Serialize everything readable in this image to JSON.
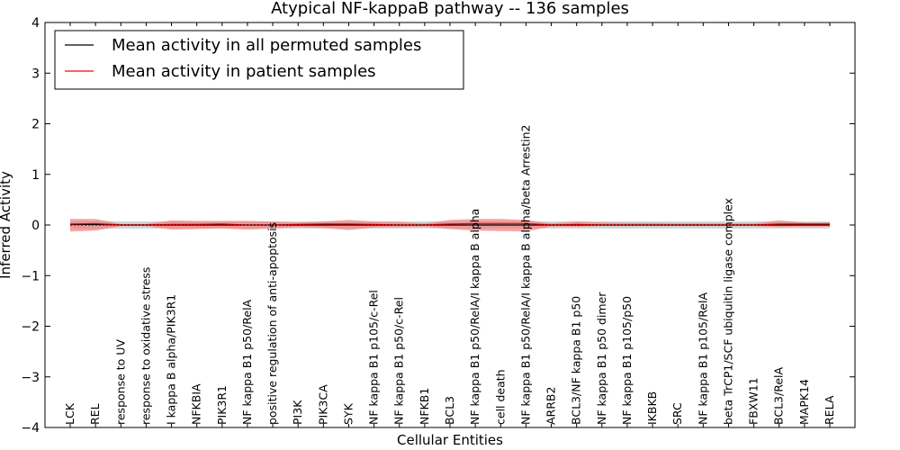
{
  "chart_data": {
    "type": "line",
    "title": "Atypical NF-kappaB pathway -- 136 samples",
    "xlabel": "Cellular Entities",
    "ylabel": "Inferred Activity",
    "ylim": [
      -4,
      4
    ],
    "yticks": [
      -4,
      -3,
      -2,
      -1,
      0,
      1,
      2,
      3,
      4
    ],
    "ytick_labels": [
      "−4",
      "−3",
      "−2",
      "−1",
      "0",
      "1",
      "2",
      "3",
      "4"
    ],
    "grid": false,
    "legend_position": "top-left",
    "categories": [
      "LCK",
      "REL",
      "response to UV",
      "response to oxidative stress",
      "I kappa B alpha/PIK3R1",
      "NFKBIA",
      "PIK3R1",
      "NF kappa B1 p50/RelA",
      "positive regulation of anti-apoptosis",
      "PI3K",
      "PIK3CA",
      "SYK",
      "NF kappa B1 p105/c-Rel",
      "NF kappa B1 p50/c-Rel",
      "NFKB1",
      "BCL3",
      "NF kappa B1 p50/RelA/I kappa B alpha",
      "cell death",
      "NF kappa B1 p50/RelA/I kappa B alpha/beta Arrestin2",
      "ARRB2",
      "BCL3/NF kappa B1 p50",
      "NF kappa B1 p50 dimer",
      "NF kappa B1 p105/p50",
      "IKBKB",
      "SRC",
      "NF kappa B1 p105/RelA",
      "beta TrCP1/SCF ubiquitin ligase complex",
      "FBXW11",
      "BCL3/RelA",
      "MAPK14",
      "RELA"
    ],
    "series": [
      {
        "name": "Mean activity in all permuted samples",
        "color": "#000000",
        "values": [
          0.01,
          0.01,
          0.0,
          0.0,
          0.0,
          0.0,
          0.0,
          0.0,
          0.0,
          0.0,
          0.0,
          0.0,
          0.0,
          0.0,
          0.0,
          0.0,
          0.0,
          0.0,
          0.0,
          0.0,
          0.0,
          0.0,
          0.0,
          0.0,
          0.0,
          0.0,
          0.0,
          0.0,
          0.0,
          0.0,
          0.0
        ],
        "band_lower": [
          -0.08,
          -0.08,
          -0.07,
          -0.07,
          -0.07,
          -0.07,
          -0.07,
          -0.07,
          -0.07,
          -0.07,
          -0.07,
          -0.07,
          -0.07,
          -0.07,
          -0.07,
          -0.07,
          -0.07,
          -0.07,
          -0.07,
          -0.07,
          -0.07,
          -0.07,
          -0.07,
          -0.07,
          -0.07,
          -0.07,
          -0.07,
          -0.07,
          -0.07,
          -0.07,
          -0.07
        ],
        "band_upper": [
          0.08,
          0.08,
          0.07,
          0.07,
          0.07,
          0.07,
          0.07,
          0.07,
          0.07,
          0.07,
          0.07,
          0.07,
          0.07,
          0.07,
          0.07,
          0.07,
          0.07,
          0.07,
          0.07,
          0.07,
          0.07,
          0.07,
          0.07,
          0.07,
          0.07,
          0.07,
          0.07,
          0.07,
          0.07,
          0.07,
          0.07
        ],
        "band_color": "#c8c8c8"
      },
      {
        "name": "Mean activity in patient samples",
        "color": "#ff0000",
        "values": [
          0.02,
          0.03,
          0.0,
          0.0,
          0.01,
          0.01,
          0.02,
          0.0,
          0.0,
          0.01,
          0.02,
          0.02,
          0.01,
          0.0,
          0.0,
          0.02,
          0.03,
          0.03,
          0.03,
          0.0,
          0.01,
          0.0,
          0.0,
          0.0,
          0.0,
          0.0,
          0.0,
          0.0,
          0.02,
          0.02,
          0.02
        ],
        "band_lower": [
          -0.13,
          -0.11,
          -0.02,
          -0.02,
          -0.09,
          -0.08,
          -0.07,
          -0.09,
          -0.07,
          -0.04,
          -0.06,
          -0.1,
          -0.05,
          -0.04,
          -0.03,
          -0.08,
          -0.11,
          -0.12,
          -0.13,
          -0.03,
          -0.03,
          -0.02,
          -0.02,
          -0.02,
          -0.02,
          -0.02,
          -0.02,
          -0.02,
          -0.04,
          -0.03,
          -0.03
        ],
        "band_upper": [
          0.12,
          0.12,
          0.02,
          0.02,
          0.09,
          0.08,
          0.08,
          0.08,
          0.07,
          0.05,
          0.07,
          0.1,
          0.07,
          0.06,
          0.03,
          0.1,
          0.12,
          0.12,
          0.1,
          0.03,
          0.07,
          0.05,
          0.04,
          0.04,
          0.03,
          0.03,
          0.03,
          0.03,
          0.09,
          0.05,
          0.05
        ],
        "band_color": "#f08080"
      }
    ]
  }
}
